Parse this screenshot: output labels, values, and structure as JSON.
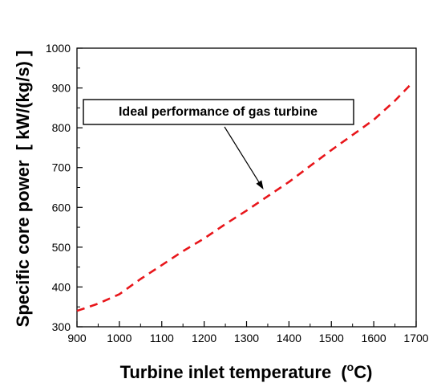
{
  "chart_data": {
    "type": "line",
    "title": "",
    "xlabel": "Turbine inlet temperature",
    "xlabel_unit_prefix": "(",
    "xlabel_unit_sup": "o",
    "xlabel_unit_suffix": "C)",
    "ylabel": "Specific core power",
    "ylabel_unit": "[ kW/(kg/s) ]",
    "xlim": [
      900,
      1700
    ],
    "ylim": [
      300,
      1000
    ],
    "xticks": [
      900,
      1000,
      1100,
      1200,
      1300,
      1400,
      1500,
      1600,
      1700
    ],
    "yticks": [
      300,
      400,
      500,
      600,
      700,
      800,
      900,
      1000
    ],
    "grid": false,
    "series": [
      {
        "name": "",
        "color": "#e8161b",
        "style": "dashed",
        "x": [
          900,
          950,
          1000,
          1050,
          1100,
          1150,
          1200,
          1250,
          1300,
          1350,
          1400,
          1450,
          1500,
          1550,
          1600,
          1650,
          1690
        ],
        "y": [
          340,
          358,
          382,
          420,
          455,
          490,
          522,
          558,
          592,
          628,
          664,
          704,
          744,
          782,
          820,
          868,
          912
        ]
      }
    ],
    "annotation": {
      "text": "Ideal performance of gas turbine",
      "arrow_to": {
        "x": 1340,
        "y": 645
      }
    }
  }
}
